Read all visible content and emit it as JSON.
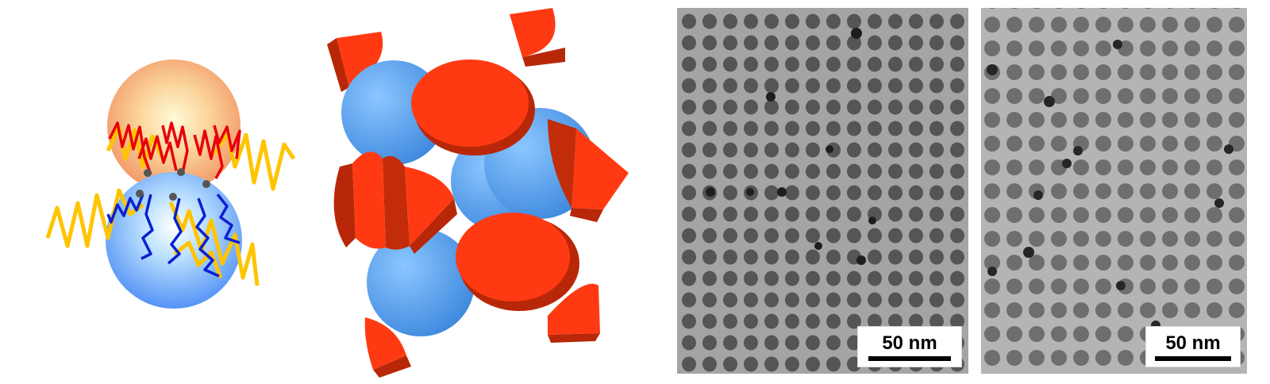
{
  "figure": {
    "panels": [
      {
        "id": "a",
        "content": "janus-particle-schematic"
      },
      {
        "id": "b",
        "content": "3d-lattice-model"
      },
      {
        "id": "c",
        "content": "tem-micrograph",
        "scale_bar": "50 nm"
      },
      {
        "id": "d",
        "content": "tem-micrograph",
        "scale_bar": "50 nm"
      }
    ]
  },
  "colors": {
    "orange_sphere": "#f4a070",
    "blue_sphere": "#6aa6ff",
    "red_chain": "#e8000a",
    "blue_chain": "#0a20d0",
    "yellow_chain": "#ffc400",
    "red_cap": "#ff3a12",
    "red_cap_side": "#b82808",
    "lattice_blue": "#4a9ae8",
    "tem_gray": "#8d8d8d"
  }
}
